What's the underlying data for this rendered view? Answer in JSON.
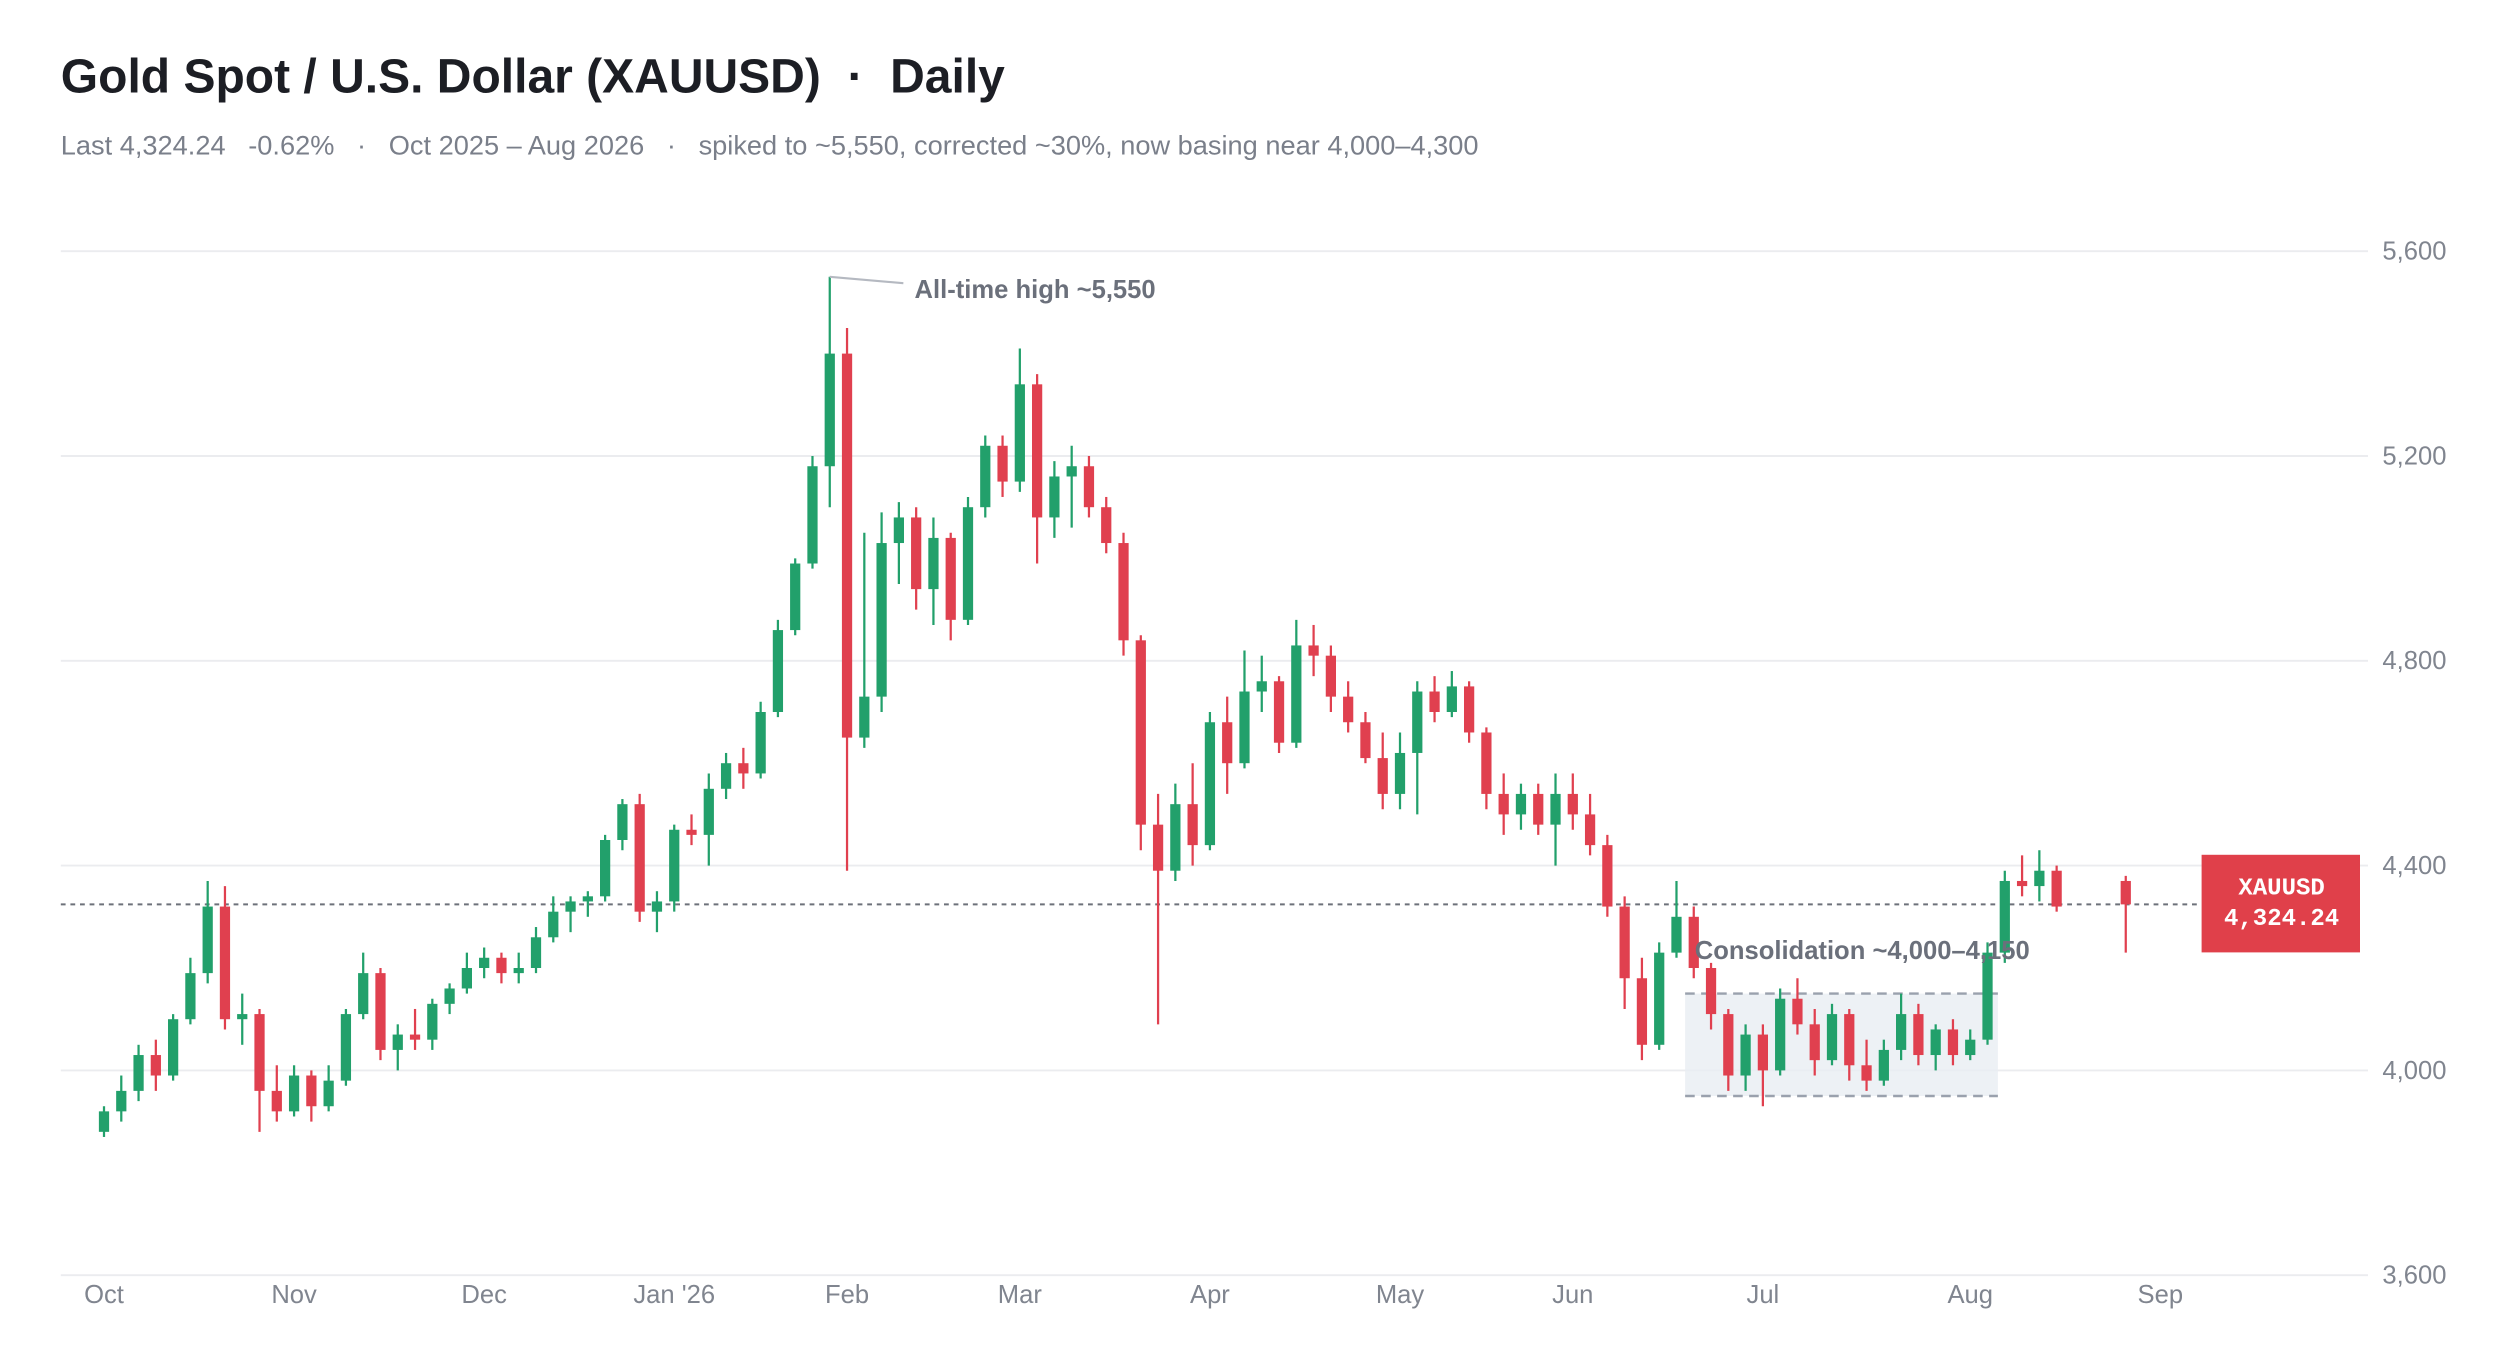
{
  "chart_data": {
    "type": "candlestick",
    "title": "Gold Spot / U.S. Dollar (XAUUSD)  ·  Daily",
    "subtitle": "Last 4,324.24   -0.62%   ·   Oct 2025 – Aug 2026   ·   spiked to ~5,550, corrected ~30%, now basing near 4,000–4,300",
    "categories": [
      "Oct",
      null,
      null,
      null,
      null,
      null,
      null,
      null,
      null,
      null,
      null,
      "Nov",
      null,
      null,
      null,
      null,
      null,
      null,
      null,
      null,
      null,
      null,
      "Dec",
      null,
      null,
      null,
      null,
      null,
      null,
      null,
      null,
      null,
      null,
      "Jan '26",
      null,
      null,
      null,
      null,
      null,
      null,
      null,
      null,
      null,
      "Feb",
      null,
      null,
      null,
      null,
      null,
      null,
      null,
      null,
      null,
      "Mar",
      null,
      null,
      null,
      null,
      null,
      null,
      null,
      null,
      null,
      null,
      "Apr",
      null,
      null,
      null,
      null,
      null,
      null,
      null,
      null,
      null,
      null,
      "May",
      null,
      null,
      null,
      null,
      null,
      null,
      null,
      null,
      null,
      "Jun",
      null,
      null,
      null,
      null,
      null,
      null,
      null,
      null,
      null,
      null,
      "Jul",
      null,
      null,
      null,
      null,
      null,
      null,
      null,
      null,
      null,
      null,
      null,
      "Aug",
      null,
      null,
      null,
      null,
      null,
      null,
      null,
      null,
      null,
      null,
      "Sep"
    ],
    "open": [
      3880,
      3920,
      3960,
      4030,
      3990,
      4100,
      4190,
      4320,
      4100,
      4110,
      3960,
      3920,
      3990,
      3930,
      3980,
      4110,
      4190,
      4040,
      4070,
      4060,
      4130,
      4160,
      4200,
      4220,
      4190,
      4200,
      4260,
      4310,
      4330,
      4340,
      4450,
      4520,
      4310,
      4330,
      4470,
      4460,
      4550,
      4600,
      4580,
      4700,
      4860,
      4990,
      5180,
      5400,
      4650,
      4730,
      5030,
      5080,
      4940,
      5040,
      4880,
      5100,
      5220,
      5150,
      5340,
      5080,
      5160,
      5180,
      5100,
      5030,
      4840,
      4480,
      4390,
      4520,
      4440,
      4680,
      4600,
      4740,
      4760,
      4640,
      4830,
      4810,
      4730,
      4680,
      4610,
      4540,
      4620,
      4740,
      4700,
      4750,
      4660,
      4540,
      4500,
      4540,
      4480,
      4540,
      4500,
      4440,
      4320,
      4180,
      4050,
      4230,
      4300,
      4200,
      4110,
      3990,
      4070,
      4000,
      4140,
      4090,
      4020,
      4110,
      4010,
      3980,
      4040,
      4110,
      4030,
      4080,
      4030,
      4060,
      4230,
      4370,
      4360,
      4390,
      null,
      null,
      null,
      4370,
      null,
      null
    ],
    "high": [
      3930,
      3990,
      4050,
      4060,
      4110,
      4220,
      4370,
      4360,
      4150,
      4120,
      4010,
      4010,
      4000,
      4010,
      4120,
      4230,
      4200,
      4090,
      4120,
      4140,
      4170,
      4230,
      4240,
      4230,
      4230,
      4280,
      4340,
      4340,
      4350,
      4460,
      4530,
      4540,
      4350,
      4480,
      4500,
      4580,
      4620,
      4630,
      4720,
      4880,
      5000,
      5200,
      5550,
      5450,
      5050,
      5090,
      5110,
      5100,
      5080,
      5050,
      5120,
      5240,
      5240,
      5410,
      5360,
      5190,
      5220,
      5200,
      5120,
      5050,
      4850,
      4540,
      4560,
      4600,
      4700,
      4730,
      4820,
      4810,
      4770,
      4880,
      4870,
      4830,
      4760,
      4700,
      4660,
      4660,
      4760,
      4770,
      4780,
      4760,
      4670,
      4580,
      4560,
      4560,
      4580,
      4580,
      4540,
      4460,
      4340,
      4220,
      4250,
      4370,
      4320,
      4210,
      4120,
      4090,
      4090,
      4160,
      4180,
      4120,
      4130,
      4120,
      4060,
      4060,
      4150,
      4130,
      4090,
      4100,
      4080,
      4250,
      4390,
      4420,
      4430,
      4400,
      null,
      null,
      null,
      4380,
      null,
      null
    ],
    "low": [
      3870,
      3900,
      3940,
      3960,
      3980,
      4090,
      4170,
      4080,
      4050,
      3880,
      3900,
      3910,
      3900,
      3920,
      3970,
      4100,
      4020,
      4000,
      4040,
      4040,
      4110,
      4150,
      4180,
      4170,
      4170,
      4190,
      4250,
      4270,
      4300,
      4330,
      4430,
      4290,
      4270,
      4310,
      4440,
      4400,
      4530,
      4550,
      4570,
      4690,
      4850,
      4980,
      5100,
      4390,
      4630,
      4700,
      4950,
      4900,
      4870,
      4840,
      4870,
      5080,
      5120,
      5130,
      4990,
      5040,
      5060,
      5080,
      5010,
      4810,
      4430,
      4090,
      4370,
      4400,
      4430,
      4540,
      4590,
      4700,
      4620,
      4630,
      4770,
      4700,
      4660,
      4600,
      4510,
      4510,
      4500,
      4680,
      4690,
      4640,
      4510,
      4460,
      4470,
      4460,
      4400,
      4470,
      4420,
      4300,
      4120,
      4020,
      4040,
      4220,
      4180,
      4080,
      3960,
      3960,
      3930,
      3990,
      4070,
      3990,
      4010,
      3980,
      3960,
      3970,
      4020,
      4010,
      4000,
      4010,
      4020,
      4050,
      4210,
      4340,
      4330,
      4310,
      null,
      null,
      null,
      4230,
      null,
      null
    ],
    "close": [
      3920,
      3960,
      4030,
      3990,
      4100,
      4190,
      4320,
      4100,
      4110,
      3960,
      3920,
      3990,
      3930,
      3980,
      4110,
      4190,
      4040,
      4070,
      4060,
      4130,
      4160,
      4200,
      4220,
      4190,
      4200,
      4260,
      4310,
      4330,
      4340,
      4450,
      4520,
      4310,
      4330,
      4470,
      4460,
      4550,
      4600,
      4580,
      4700,
      4860,
      4990,
      5180,
      5400,
      4650,
      4730,
      5030,
      5080,
      4940,
      5040,
      4880,
      5100,
      5220,
      5150,
      5340,
      5080,
      5160,
      5180,
      5100,
      5030,
      4840,
      4480,
      4390,
      4520,
      4440,
      4680,
      4600,
      4740,
      4760,
      4640,
      4830,
      4810,
      4730,
      4680,
      4610,
      4540,
      4620,
      4740,
      4700,
      4750,
      4660,
      4540,
      4500,
      4540,
      4480,
      4540,
      4500,
      4440,
      4320,
      4180,
      4050,
      4230,
      4300,
      4200,
      4110,
      3990,
      4070,
      4000,
      4140,
      4090,
      4020,
      4110,
      4010,
      3980,
      4040,
      4110,
      4030,
      4080,
      4030,
      4060,
      4230,
      4370,
      4360,
      4390,
      4320,
      null,
      null,
      null,
      4324.24,
      null,
      null
    ],
    "up_color": "#22a06b",
    "down_color": "#e0404f",
    "ylim": [
      3600,
      5600
    ],
    "yticks": [
      {
        "value": 3600,
        "label": "3,600"
      },
      {
        "value": 4000,
        "label": "4,000"
      },
      {
        "value": 4400,
        "label": "4,400"
      },
      {
        "value": 4800,
        "label": "4,800"
      },
      {
        "value": 5200,
        "label": "5,200"
      },
      {
        "value": 5600,
        "label": "5,600"
      }
    ],
    "grid": true,
    "ath_annotation": "All-time high ~5,550",
    "consolidation": {
      "label": "Consolidation ~4,000–4,150",
      "low": 3950,
      "high": 4150
    },
    "last_price": {
      "symbol": "XAUUSD",
      "value": 4324.24,
      "label": "4,324.24"
    }
  }
}
